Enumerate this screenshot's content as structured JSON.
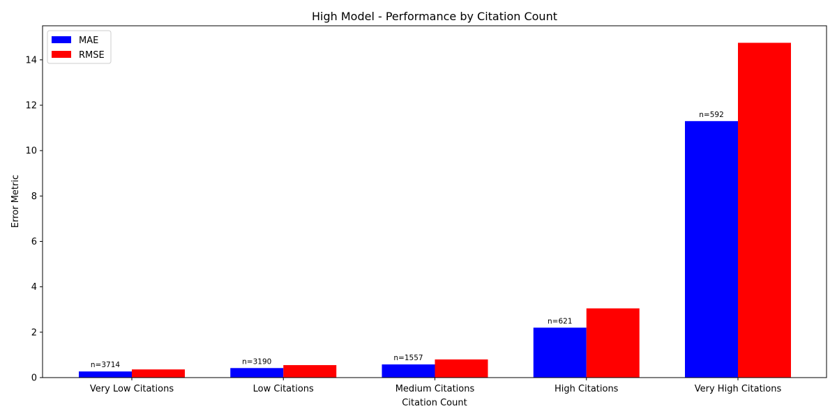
{
  "chart_data": {
    "type": "bar",
    "title": "High Model - Performance by Citation Count",
    "xlabel": "Citation Count",
    "ylabel": "Error Metric",
    "categories": [
      "Very Low Citations",
      "Low Citations",
      "Medium Citations",
      "High Citations",
      "Very High Citations"
    ],
    "series": [
      {
        "name": "MAE",
        "color": "#0000ff",
        "values": [
          0.27,
          0.42,
          0.58,
          2.2,
          11.3
        ]
      },
      {
        "name": "RMSE",
        "color": "#ff0000",
        "values": [
          0.36,
          0.55,
          0.8,
          3.05,
          14.75
        ]
      }
    ],
    "annotations": [
      "n=3714",
      "n=3190",
      "n=1557",
      "n=621",
      "n=592"
    ],
    "ylim": [
      0,
      15.5
    ],
    "yticks": [
      0,
      2,
      4,
      6,
      8,
      10,
      12,
      14
    ],
    "legend_position": "top-left",
    "grid": false
  }
}
